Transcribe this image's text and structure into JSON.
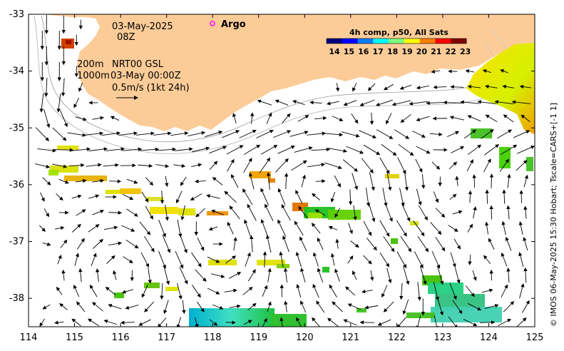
{
  "map": {
    "date": "03-May-2025",
    "time": "08Z",
    "legend_argo": "Argo",
    "contour_200": "200m",
    "contour_1000": "1000m",
    "product": "NRT00 GSL",
    "product_time": "03-May 00:00Z",
    "velocity_scale": "0.5m/s (1kt 24h)",
    "colorbar_title": "4h comp, p50, All Sats",
    "colorbar_ticks": [
      "14",
      "15",
      "16",
      "17",
      "18",
      "19",
      "20",
      "21",
      "22",
      "23"
    ],
    "colorbar_colors": [
      "#00007f",
      "#0000ff",
      "#007fff",
      "#00ffff",
      "#7fff7f",
      "#ffff00",
      "#ff7f00",
      "#ff0000",
      "#7f0000"
    ],
    "credit": "© IMOS 06-May-2025 15:30 Hobart; Tscale=CARS+[-1 1]",
    "x_ticks": [
      "114",
      "115",
      "116",
      "117",
      "118",
      "119",
      "120",
      "121",
      "122",
      "123",
      "124",
      "125"
    ],
    "y_ticks": [
      "-33",
      "-34",
      "-35",
      "-36",
      "-37",
      "-38"
    ],
    "x_range": [
      114,
      125
    ],
    "y_range": [
      -38.5,
      -33
    ],
    "land_color": "#fccc98",
    "argo_color": "#ff00ff"
  }
}
